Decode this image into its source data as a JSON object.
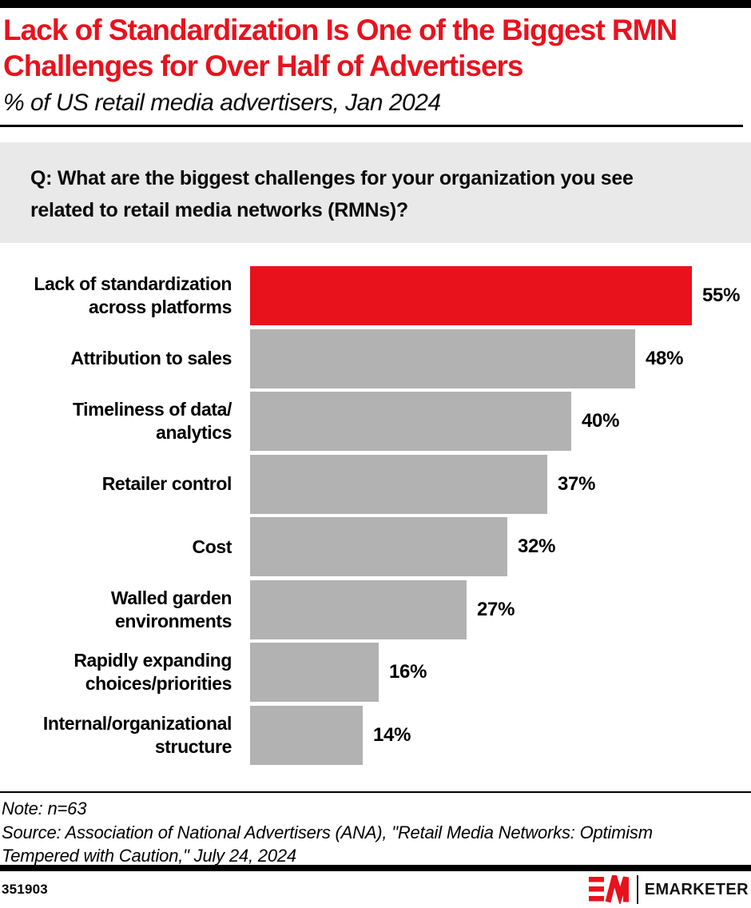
{
  "header": {
    "title_lines": [
      "Lack of Standardization Is One of the Biggest RMN",
      "Challenges for Over Half of Advertisers"
    ],
    "subtitle": "% of US retail media advertisers, Jan 2024"
  },
  "question": {
    "lines": [
      "Q: What are the biggest challenges for your organization you see",
      "related to retail media networks (RMNs)?"
    ]
  },
  "chart_data": {
    "type": "bar",
    "orientation": "horizontal",
    "title": "Lack of Standardization Is One of the Biggest RMN Challenges for Over Half of Advertisers",
    "subtitle": "% of US retail media advertisers, Jan 2024",
    "categories": [
      "Lack of standardization across platforms",
      "Attribution to sales",
      "Timeliness of data/analytics",
      "Retailer control",
      "Cost",
      "Walled garden environments",
      "Rapidly expanding choices/priorities",
      "Internal/organizational structure"
    ],
    "category_label_lines": [
      [
        "Lack of standardization",
        "across platforms"
      ],
      [
        "Attribution to sales"
      ],
      [
        "Timeliness of data/",
        "analytics"
      ],
      [
        "Retailer control"
      ],
      [
        "Cost"
      ],
      [
        "Walled garden",
        "environments"
      ],
      [
        "Rapidly expanding",
        "choices/priorities"
      ],
      [
        "Internal/organizational",
        "structure"
      ]
    ],
    "values": [
      55,
      48,
      40,
      37,
      32,
      27,
      16,
      14
    ],
    "value_labels": [
      "55%",
      "48%",
      "40%",
      "37%",
      "32%",
      "27%",
      "16%",
      "14%"
    ],
    "value_suffix": "%",
    "xlim": [
      0,
      62
    ],
    "grid": false,
    "legend": false,
    "highlight_index": 0,
    "colors": {
      "highlight": "#e8121d",
      "default": "#b2b2b2"
    }
  },
  "notes": {
    "note": "Note: n=63",
    "source_lines": [
      "Source: Association of National Advertisers (ANA), \"Retail Media Networks: Optimism",
      "Tempered with Caution,\" July 24, 2024"
    ]
  },
  "footer": {
    "chart_id": "351903",
    "brand": "EMARKETER",
    "logo": "emarketer-em-monogram",
    "brand_color": "#e8121d"
  }
}
